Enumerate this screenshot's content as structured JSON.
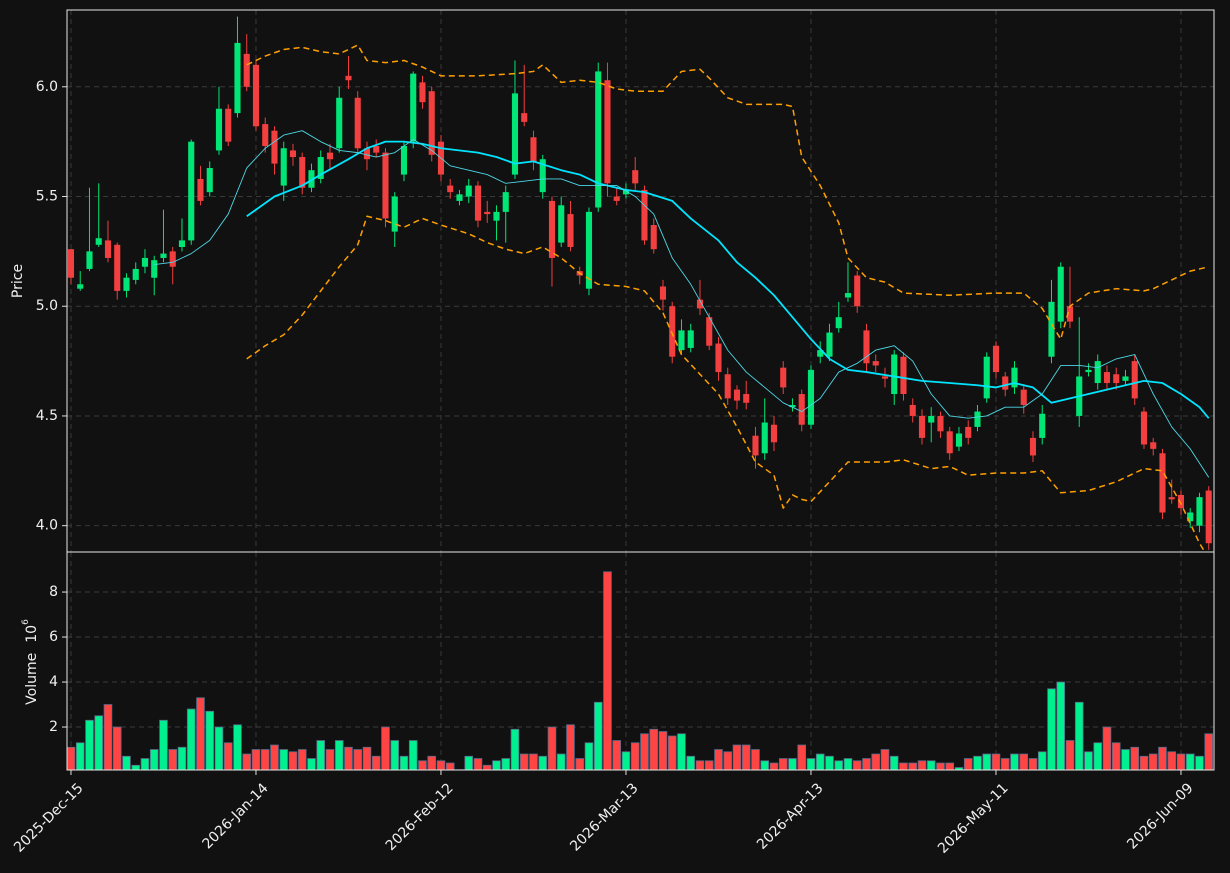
{
  "chart_data": [
    {
      "type": "candlestick",
      "ylabel": "Price",
      "xlim": [
        -0.43,
        123.57
      ],
      "ylim": [
        3.88,
        6.35
      ],
      "yticks": [
        {
          "value": 4,
          "label": "4.0"
        },
        4.5,
        {
          "value": 5,
          "label": "5.0"
        },
        5.5,
        {
          "value": 6,
          "label": "6.0"
        }
      ],
      "grid": true,
      "up_color": "#00e676",
      "down_color": "#f23f3f",
      "open": [
        5.26,
        5.08,
        5.17,
        5.28,
        5.3,
        5.28,
        5.07,
        5.12,
        5.18,
        5.13,
        5.22,
        5.25,
        5.27,
        5.3,
        5.58,
        5.52,
        5.71,
        5.9,
        5.88,
        6.15,
        6.1,
        5.83,
        5.8,
        5.55,
        5.71,
        5.68,
        5.54,
        5.58,
        5.7,
        5.72,
        6.05,
        5.95,
        5.72,
        5.73,
        5.7,
        5.34,
        5.6,
        5.75,
        6.02,
        5.98,
        5.75,
        5.55,
        5.48,
        5.5,
        5.55,
        5.43,
        5.39,
        5.43,
        5.6,
        5.88,
        5.77,
        5.52,
        5.48,
        5.29,
        5.42,
        5.16,
        5.08,
        5.45,
        6.03,
        5.5,
        5.51,
        5.62,
        5.53,
        5.37,
        5.09,
        5.0,
        4.8,
        4.81,
        5.03,
        4.95,
        4.83,
        4.69,
        4.62,
        4.6,
        4.41,
        4.33,
        4.46,
        4.72,
        4.54,
        4.6,
        4.46,
        4.77,
        4.77,
        4.9,
        5.04,
        5.14,
        4.89,
        4.75,
        4.68,
        4.6,
        4.77,
        4.55,
        4.5,
        4.47,
        4.5,
        4.43,
        4.36,
        4.45,
        4.45,
        4.58,
        4.82,
        4.68,
        4.63,
        4.62,
        4.4,
        4.4,
        4.77,
        4.93,
        5.0,
        4.5,
        4.7,
        4.65,
        4.7,
        4.69,
        4.66,
        4.75,
        4.52,
        4.38,
        4.33,
        4.13,
        4.14,
        4.02,
        4.0,
        4.16
      ],
      "high": [
        5.26,
        5.16,
        5.54,
        5.56,
        5.39,
        5.29,
        5.15,
        5.2,
        5.26,
        5.23,
        5.44,
        5.27,
        5.4,
        5.76,
        5.64,
        5.66,
        6.0,
        5.92,
        6.32,
        6.24,
        6.12,
        5.86,
        5.82,
        5.75,
        5.74,
        5.7,
        5.65,
        5.71,
        5.74,
        6.0,
        6.14,
        5.98,
        5.75,
        5.76,
        5.72,
        5.52,
        5.75,
        6.07,
        6.05,
        6.0,
        5.78,
        5.58,
        5.53,
        5.58,
        5.57,
        5.48,
        5.46,
        5.55,
        6.12,
        6.1,
        5.8,
        5.69,
        5.5,
        5.5,
        5.48,
        5.18,
        5.45,
        6.11,
        6.11,
        5.54,
        5.56,
        5.68,
        5.55,
        5.4,
        5.12,
        5.02,
        4.94,
        4.92,
        5.12,
        4.97,
        4.86,
        4.72,
        4.64,
        4.66,
        4.45,
        4.58,
        4.5,
        4.75,
        4.58,
        4.62,
        4.73,
        4.84,
        4.92,
        5.02,
        5.2,
        5.16,
        4.92,
        4.78,
        4.72,
        4.8,
        4.79,
        4.58,
        4.53,
        4.54,
        4.52,
        4.45,
        4.45,
        4.48,
        4.55,
        4.79,
        4.84,
        4.7,
        4.75,
        4.64,
        4.43,
        4.55,
        5.12,
        5.2,
        5.18,
        4.95,
        4.74,
        4.78,
        4.73,
        4.72,
        4.71,
        4.78,
        4.54,
        4.4,
        4.35,
        4.21,
        4.16,
        4.08,
        4.15,
        4.18
      ],
      "low": [
        5.1,
        5.07,
        5.16,
        5.27,
        5.2,
        5.03,
        5.04,
        5.1,
        5.15,
        5.05,
        5.2,
        5.1,
        5.25,
        5.28,
        5.46,
        5.5,
        5.69,
        5.73,
        5.86,
        5.98,
        5.8,
        5.7,
        5.6,
        5.48,
        5.64,
        5.51,
        5.52,
        5.56,
        5.62,
        5.7,
        5.99,
        5.7,
        5.62,
        5.68,
        5.36,
        5.27,
        5.57,
        5.72,
        5.9,
        5.66,
        5.57,
        5.49,
        5.46,
        5.47,
        5.36,
        5.38,
        5.3,
        5.29,
        5.58,
        5.82,
        5.62,
        5.49,
        5.09,
        5.27,
        5.25,
        5.1,
        5.05,
        5.43,
        5.5,
        5.46,
        5.49,
        5.53,
        5.28,
        5.24,
        4.98,
        4.74,
        4.78,
        4.79,
        4.96,
        4.8,
        4.66,
        4.55,
        4.53,
        4.53,
        4.26,
        4.3,
        4.34,
        4.6,
        4.52,
        4.43,
        4.44,
        4.74,
        4.75,
        4.88,
        5.02,
        4.97,
        4.7,
        4.7,
        4.63,
        4.55,
        4.57,
        4.47,
        4.37,
        4.38,
        4.4,
        4.3,
        4.34,
        4.37,
        4.43,
        4.56,
        4.67,
        4.59,
        4.6,
        4.51,
        4.29,
        4.37,
        4.74,
        4.9,
        4.9,
        4.45,
        4.68,
        4.62,
        4.62,
        4.62,
        4.64,
        4.55,
        4.35,
        4.32,
        4.03,
        4.1,
        4.05,
        3.99,
        3.97,
        3.89
      ],
      "close": [
        5.13,
        5.1,
        5.25,
        5.31,
        5.22,
        5.07,
        5.13,
        5.17,
        5.22,
        5.21,
        5.24,
        5.18,
        5.3,
        5.75,
        5.48,
        5.63,
        5.9,
        5.75,
        6.2,
        6.0,
        5.82,
        5.73,
        5.65,
        5.72,
        5.68,
        5.54,
        5.62,
        5.68,
        5.67,
        5.95,
        6.03,
        5.72,
        5.67,
        5.7,
        5.4,
        5.5,
        5.73,
        6.06,
        5.93,
        5.69,
        5.6,
        5.52,
        5.51,
        5.55,
        5.39,
        5.42,
        5.43,
        5.52,
        5.97,
        5.84,
        5.66,
        5.67,
        5.22,
        5.46,
        5.27,
        5.14,
        5.43,
        6.07,
        5.56,
        5.48,
        5.53,
        5.56,
        5.3,
        5.26,
        5.03,
        4.77,
        4.89,
        4.89,
        4.99,
        4.82,
        4.7,
        4.58,
        4.57,
        4.56,
        4.32,
        4.47,
        4.38,
        4.63,
        4.55,
        4.46,
        4.71,
        4.8,
        4.88,
        4.95,
        5.06,
        5.0,
        4.74,
        4.73,
        4.67,
        4.78,
        4.6,
        4.5,
        4.4,
        4.5,
        4.43,
        4.33,
        4.42,
        4.4,
        4.52,
        4.77,
        4.7,
        4.62,
        4.72,
        4.55,
        4.32,
        4.51,
        5.02,
        5.18,
        4.93,
        4.68,
        4.71,
        4.75,
        4.65,
        4.65,
        4.68,
        4.58,
        4.37,
        4.35,
        4.06,
        4.12,
        4.08,
        4.06,
        4.13,
        3.92
      ],
      "series": [
        {
          "color": "#00e5ff",
          "width": 1.8,
          "dash": false,
          "x": [
            19,
            22,
            25,
            27,
            30,
            32,
            34,
            36,
            38,
            40,
            44,
            46,
            48,
            50,
            53,
            55,
            57,
            60,
            62,
            65,
            67,
            70,
            72,
            74,
            76,
            78,
            80,
            82,
            84,
            86,
            89,
            92,
            95,
            98,
            100,
            102,
            104,
            106,
            108,
            110,
            112,
            114,
            116,
            118,
            120,
            122,
            123
          ],
          "values": [
            5.41,
            5.5,
            5.55,
            5.6,
            5.67,
            5.72,
            5.75,
            5.75,
            5.74,
            5.72,
            5.7,
            5.68,
            5.65,
            5.66,
            5.62,
            5.6,
            5.56,
            5.53,
            5.52,
            5.48,
            5.4,
            5.3,
            5.2,
            5.13,
            5.05,
            4.95,
            4.85,
            4.76,
            4.71,
            4.7,
            4.68,
            4.66,
            4.65,
            4.64,
            4.63,
            4.65,
            4.63,
            4.56,
            4.58,
            4.6,
            4.62,
            4.64,
            4.66,
            4.65,
            4.6,
            4.54,
            4.49
          ]
        },
        {
          "color": "#4dd8e6",
          "width": 0.9,
          "dash": false,
          "x": [
            9,
            11,
            13,
            15,
            17,
            19,
            21,
            23,
            25,
            27,
            29,
            31,
            33,
            35,
            37,
            39,
            41,
            43,
            45,
            47,
            49,
            51,
            53,
            55,
            57,
            59,
            61,
            63,
            65,
            67,
            69,
            71,
            73,
            75,
            77,
            79,
            81,
            83,
            85,
            87,
            89,
            91,
            93,
            95,
            97,
            99,
            101,
            103,
            105,
            107,
            109,
            111,
            113,
            115,
            117,
            119,
            121,
            123
          ],
          "values": [
            5.19,
            5.2,
            5.24,
            5.3,
            5.42,
            5.63,
            5.72,
            5.78,
            5.8,
            5.75,
            5.71,
            5.7,
            5.68,
            5.7,
            5.76,
            5.71,
            5.64,
            5.62,
            5.6,
            5.56,
            5.57,
            5.58,
            5.58,
            5.55,
            5.55,
            5.55,
            5.5,
            5.42,
            5.22,
            5.1,
            4.95,
            4.8,
            4.7,
            4.63,
            4.56,
            4.52,
            4.58,
            4.7,
            4.74,
            4.8,
            4.82,
            4.75,
            4.6,
            4.5,
            4.49,
            4.5,
            4.54,
            4.54,
            4.6,
            4.73,
            4.73,
            4.72,
            4.76,
            4.78,
            4.6,
            4.45,
            4.35,
            4.22
          ]
        },
        {
          "color": "#ffa000",
          "width": 1.5,
          "dash": true,
          "x": [
            19,
            21,
            23,
            25,
            27,
            29,
            30,
            31,
            32,
            34,
            36,
            38,
            40,
            44,
            48,
            50,
            51,
            53,
            55,
            57,
            59,
            61,
            64,
            66,
            68,
            69,
            71,
            73,
            75,
            77,
            78,
            79,
            81,
            83,
            84,
            86,
            88,
            90,
            95,
            100,
            103,
            105,
            107,
            108,
            110,
            113,
            116,
            117,
            119,
            121,
            123
          ],
          "values": [
            6.1,
            6.14,
            6.17,
            6.18,
            6.16,
            6.15,
            6.17,
            6.19,
            6.12,
            6.11,
            6.12,
            6.09,
            6.05,
            6.05,
            6.06,
            6.07,
            6.1,
            6.02,
            6.03,
            6.02,
            5.99,
            5.98,
            5.98,
            6.07,
            6.08,
            6.04,
            5.95,
            5.92,
            5.92,
            5.92,
            5.91,
            5.68,
            5.55,
            5.38,
            5.22,
            5.13,
            5.11,
            5.06,
            5.05,
            5.06,
            5.06,
            4.99,
            4.85,
            5.0,
            5.06,
            5.08,
            5.07,
            5.08,
            5.12,
            5.16,
            5.18
          ]
        },
        {
          "color": "#ffa000",
          "width": 1.5,
          "dash": true,
          "x": [
            19,
            21,
            23,
            25,
            27,
            29,
            31,
            32,
            34,
            36,
            38,
            40,
            43,
            45,
            47,
            49,
            51,
            53,
            55,
            57,
            60,
            62,
            64,
            66,
            68,
            70,
            72,
            74,
            76,
            77,
            78,
            79,
            80,
            82,
            84,
            86,
            88,
            90,
            93,
            95,
            97,
            100,
            103,
            105,
            107,
            110,
            113,
            116,
            118,
            120,
            122,
            123
          ],
          "values": [
            4.76,
            4.82,
            4.87,
            4.96,
            5.07,
            5.18,
            5.28,
            5.41,
            5.39,
            5.36,
            5.4,
            5.37,
            5.33,
            5.29,
            5.26,
            5.24,
            5.27,
            5.22,
            5.15,
            5.1,
            5.09,
            5.07,
            4.97,
            4.78,
            4.69,
            4.6,
            4.45,
            4.29,
            4.23,
            4.08,
            4.14,
            4.12,
            4.11,
            4.2,
            4.29,
            4.29,
            4.29,
            4.3,
            4.26,
            4.27,
            4.23,
            4.24,
            4.24,
            4.25,
            4.15,
            4.16,
            4.2,
            4.26,
            4.25,
            4.1,
            3.92,
            3.85
          ]
        }
      ]
    },
    {
      "type": "bar",
      "ylabel": "Volume",
      "scale_base": "10",
      "scale_exponent": "6",
      "xlim": [
        -0.43,
        123.57
      ],
      "ylim": [
        0.09,
        9.78
      ],
      "yticks": [
        2,
        4,
        6,
        8
      ],
      "grid": true,
      "xticks": [
        {
          "value": 0,
          "label": "2025-Dec-15"
        },
        {
          "value": 20,
          "label": "2026-Jan-14"
        },
        {
          "value": 40,
          "label": "2026-Feb-12"
        },
        {
          "value": 60,
          "label": "2026-Mar-13"
        },
        {
          "value": 80,
          "label": "2026-Apr-13"
        },
        {
          "value": 100,
          "label": "2026-May-11"
        },
        {
          "value": 120,
          "label": "2026-Jun-09"
        }
      ],
      "up_color": "#00f090",
      "down_color": "#ff4444",
      "edge_color": "#5a6a8a",
      "values": [
        1.1,
        1.3,
        2.3,
        2.5,
        3.0,
        2.0,
        0.7,
        0.3,
        0.6,
        1.0,
        2.3,
        1.0,
        1.1,
        2.8,
        3.3,
        2.7,
        2.0,
        1.3,
        2.1,
        0.8,
        1.0,
        1.0,
        1.2,
        1.0,
        0.9,
        1.0,
        0.6,
        1.4,
        1.0,
        1.4,
        1.1,
        1.0,
        1.1,
        0.7,
        2.0,
        1.4,
        0.7,
        1.4,
        0.5,
        0.7,
        0.5,
        0.4,
        0.1,
        0.7,
        0.6,
        0.3,
        0.5,
        0.6,
        1.9,
        0.8,
        0.8,
        0.7,
        2.0,
        0.8,
        2.1,
        0.6,
        1.3,
        3.1,
        8.9,
        1.4,
        0.9,
        1.3,
        1.7,
        1.9,
        1.8,
        1.6,
        1.7,
        0.7,
        0.5,
        0.5,
        1.0,
        0.9,
        1.2,
        1.2,
        1.0,
        0.5,
        0.4,
        0.6,
        0.6,
        1.2,
        0.6,
        0.8,
        0.7,
        0.5,
        0.6,
        0.5,
        0.6,
        0.8,
        1.0,
        0.7,
        0.4,
        0.4,
        0.5,
        0.5,
        0.4,
        0.4,
        0.2,
        0.6,
        0.7,
        0.8,
        0.8,
        0.6,
        0.8,
        0.8,
        0.6,
        0.9,
        3.7,
        4.0,
        1.4,
        3.1,
        0.9,
        1.3,
        2.0,
        1.3,
        1.0,
        1.1,
        0.7,
        0.8,
        1.1,
        0.9,
        0.8,
        0.8,
        0.7,
        1.7
      ]
    }
  ]
}
